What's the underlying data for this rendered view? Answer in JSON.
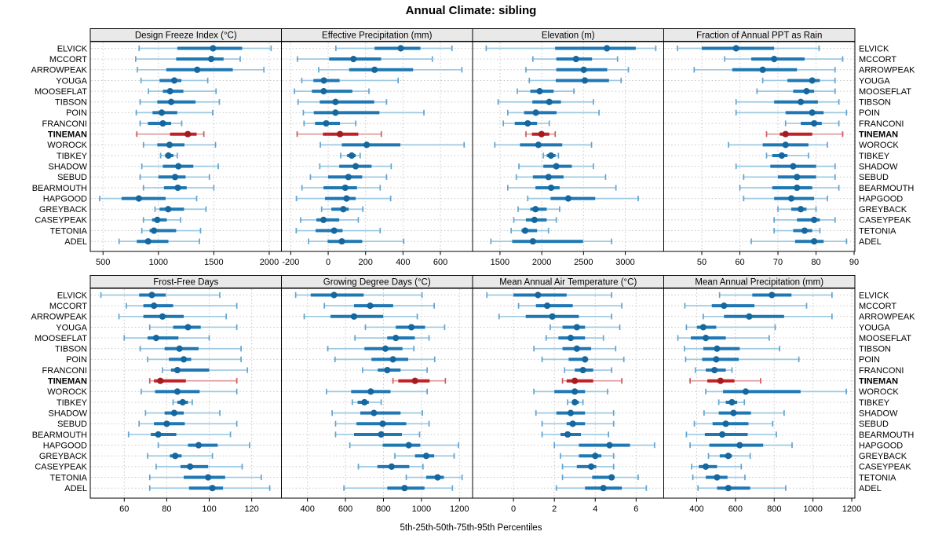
{
  "colors": {
    "series": "#1f78b4",
    "series_light": "#9dc9e2",
    "series_mid": "#63a4cd",
    "series_dark": "#15679e",
    "highlight": "#be2227",
    "highlight_light": "#dd989a",
    "highlight_mid": "#cb5a5e",
    "highlight_dark": "#a31c21",
    "grid": "#c8c8c8",
    "header_bg": "#e9e9e9",
    "border": "#000000"
  },
  "chart_data": {
    "type": "dot-interval",
    "title": "Annual Climate: sibling",
    "caption": "5th-25th-50th-75th-95th Percentiles",
    "percentiles": [
      "5th",
      "25th",
      "50th",
      "75th",
      "95th"
    ],
    "layout": {
      "rows": 2,
      "cols": 4,
      "grid": "dotted",
      "highlight_style": "red-bold"
    },
    "categories": [
      "ELVICK",
      "MCCORT",
      "ARROWPEAK",
      "YOUGA",
      "MOOSEFLAT",
      "TIBSON",
      "POIN",
      "FRANCONI",
      "TINEMAN",
      "WOROCK",
      "TIBKEY",
      "SHADOW",
      "SEBUD",
      "BEARMOUTH",
      "HAPGOOD",
      "GREYBACK",
      "CASEYPEAK",
      "TETONIA",
      "ADEL"
    ],
    "highlight_category": "TINEMAN",
    "panels": [
      {
        "title": "Design Freeze Index (°C)",
        "xlim": [
          385,
          2110
        ],
        "xticks": [
          500,
          1000,
          1500,
          2000
        ],
        "values": [
          [
            826,
            1171,
            1493,
            1755,
            2017
          ],
          [
            795,
            1160,
            1476,
            1588,
            1738
          ],
          [
            810,
            1071,
            1350,
            1671,
            1952
          ],
          [
            843,
            1010,
            1143,
            1207,
            1445
          ],
          [
            910,
            1040,
            1105,
            1225,
            1520
          ],
          [
            835,
            990,
            1115,
            1335,
            1550
          ],
          [
            800,
            947,
            1030,
            1170,
            1490
          ],
          [
            835,
            905,
            1040,
            1115,
            1210
          ],
          [
            805,
            1105,
            1265,
            1345,
            1410
          ],
          [
            865,
            990,
            1100,
            1235,
            1515
          ],
          [
            1020,
            1060,
            1090,
            1135,
            1170
          ],
          [
            850,
            1040,
            1180,
            1315,
            1540
          ],
          [
            835,
            1000,
            1150,
            1245,
            1460
          ],
          [
            865,
            1050,
            1175,
            1255,
            1500
          ],
          [
            470,
            667,
            823,
            1065,
            1345
          ],
          [
            969,
            1010,
            1088,
            1231,
            1429
          ],
          [
            865,
            943,
            990,
            1075,
            1200
          ],
          [
            850,
            920,
            960,
            1160,
            1380
          ],
          [
            645,
            805,
            907,
            1090,
            1370
          ]
        ]
      },
      {
        "title": "Effective Precipitation (mm)",
        "xlim": [
          -250,
          772
        ],
        "xticks": [
          -200,
          0,
          200,
          400,
          600
        ],
        "values": [
          [
            41,
            248,
            388,
            493,
            662
          ],
          [
            -164,
            5,
            135,
            283,
            557
          ],
          [
            -51,
            112,
            248,
            454,
            715
          ],
          [
            -141,
            -79,
            -23,
            61,
            374
          ],
          [
            -180,
            -87,
            -24,
            129,
            218
          ],
          [
            -161,
            -45,
            39,
            246,
            312
          ],
          [
            -133,
            -77,
            39,
            274,
            512
          ],
          [
            -129,
            -70,
            -11,
            63,
            147
          ],
          [
            -166,
            -28,
            63,
            161,
            284
          ],
          [
            -42,
            73,
            206,
            386,
            727
          ],
          [
            67,
            101,
            126,
            147,
            171
          ],
          [
            -45,
            59,
            147,
            232,
            337
          ],
          [
            -95,
            0,
            108,
            182,
            312
          ],
          [
            -140,
            -25,
            91,
            154,
            278
          ],
          [
            -170,
            -17,
            98,
            147,
            334
          ],
          [
            -35,
            17,
            81,
            110,
            185
          ],
          [
            -147,
            -63,
            -25,
            59,
            161
          ],
          [
            -171,
            -67,
            32,
            77,
            278
          ],
          [
            -105,
            -3,
            73,
            182,
            404
          ]
        ]
      },
      {
        "title": "Elevation (m)",
        "xlim": [
          1172,
          3460
        ],
        "xticks": [
          1500,
          2000,
          2500,
          3000
        ],
        "values": [
          [
            1335,
            2160,
            2780,
            3125,
            3365
          ],
          [
            1894,
            2174,
            2410,
            2602,
            2907
          ],
          [
            1811,
            2174,
            2503,
            2783,
            3037
          ],
          [
            1851,
            2168,
            2516,
            2805,
            2950
          ],
          [
            1708,
            1863,
            1975,
            2143,
            2385
          ],
          [
            1478,
            1888,
            2090,
            2230,
            2618
          ],
          [
            1593,
            1789,
            1929,
            2177,
            2686
          ],
          [
            1540,
            1677,
            1832,
            1944,
            2090
          ],
          [
            1811,
            1882,
            1997,
            2090,
            2161
          ],
          [
            1438,
            1739,
            1960,
            2245,
            2596
          ],
          [
            2020,
            2060,
            2110,
            2165,
            2200
          ],
          [
            1727,
            2019,
            2174,
            2360,
            2618
          ],
          [
            1696,
            1894,
            2081,
            2261,
            2764
          ],
          [
            1593,
            1925,
            2112,
            2214,
            2888
          ],
          [
            1832,
            2106,
            2317,
            2640,
            3155
          ],
          [
            1717,
            1863,
            1925,
            2059,
            2214
          ],
          [
            1665,
            1811,
            1913,
            2059,
            2174
          ],
          [
            1634,
            1758,
            1801,
            1944,
            2081
          ],
          [
            1391,
            1646,
            1894,
            2494,
            2835
          ]
        ]
      },
      {
        "title": "Fraction of Annual PPT as Rain",
        "xlim": [
          40,
          90.2
        ],
        "xticks": [
          50,
          60,
          70,
          80,
          90
        ],
        "values": [
          [
            43.6,
            50,
            59,
            69,
            80.8
          ],
          [
            56,
            63,
            69,
            77,
            87
          ],
          [
            48,
            58,
            66,
            75,
            85
          ],
          [
            66,
            72.5,
            79,
            81,
            85
          ],
          [
            64.5,
            74,
            77.5,
            79.5,
            85
          ],
          [
            59,
            69,
            76,
            80.5,
            86
          ],
          [
            59,
            72,
            79,
            82,
            88
          ],
          [
            72,
            76,
            79.5,
            81.5,
            86
          ],
          [
            67,
            70.5,
            72,
            79,
            87
          ],
          [
            57,
            66,
            72,
            78,
            83
          ],
          [
            67,
            68.5,
            71,
            72.5,
            78
          ],
          [
            59,
            68,
            74,
            80,
            85
          ],
          [
            61,
            70,
            75,
            80,
            85
          ],
          [
            60,
            68.5,
            75,
            79,
            86
          ],
          [
            61,
            69,
            73.5,
            79.5,
            83
          ],
          [
            70,
            73.5,
            76,
            77.5,
            80
          ],
          [
            69,
            75,
            79.5,
            81,
            85
          ],
          [
            69,
            74,
            77,
            79,
            81
          ],
          [
            63,
            74.5,
            79.5,
            82,
            88
          ]
        ]
      },
      {
        "title": "Frost-Free Days",
        "xlim": [
          44,
          134
        ],
        "xticks": [
          60,
          80,
          100,
          120
        ],
        "values": [
          [
            49,
            67,
            73,
            79.5,
            105
          ],
          [
            61,
            69,
            74,
            83,
            113
          ],
          [
            57.5,
            69,
            78,
            88,
            108
          ],
          [
            72,
            83,
            90,
            96,
            113
          ],
          [
            60,
            71,
            75,
            85.5,
            100
          ],
          [
            67.5,
            79,
            86,
            95,
            115
          ],
          [
            71,
            81,
            88,
            91.5,
            115
          ],
          [
            78,
            82,
            85,
            100,
            118
          ],
          [
            72,
            74,
            77,
            89,
            113
          ],
          [
            68,
            74.5,
            85,
            95.5,
            113
          ],
          [
            83,
            85,
            87.5,
            90,
            92
          ],
          [
            70,
            79,
            83.5,
            88,
            105
          ],
          [
            67,
            74,
            80,
            88.5,
            113
          ],
          [
            62,
            72.5,
            76,
            84.5,
            110
          ],
          [
            76,
            90,
            95,
            104,
            119
          ],
          [
            71,
            81.5,
            84,
            87,
            101.5
          ],
          [
            75,
            86.5,
            91,
            99.5,
            115.5
          ],
          [
            72,
            88,
            99.5,
            107.5,
            124.5
          ],
          [
            72,
            90.5,
            101.5,
            106.5,
            128.5
          ]
        ]
      },
      {
        "title": "Growing Degree Days (°C)",
        "xlim": [
          263,
          1269
        ],
        "xticks": [
          400,
          600,
          800,
          1000,
          1200
        ],
        "values": [
          [
            338,
            417,
            540,
            696,
            1003
          ],
          [
            489,
            645,
            730,
            851,
            1067
          ],
          [
            383,
            521,
            645,
            799,
            978
          ],
          [
            705,
            865,
            947,
            1019,
            1122
          ],
          [
            650,
            820,
            865,
            965,
            1040
          ],
          [
            507,
            700,
            810,
            900,
            960
          ],
          [
            545,
            737,
            850,
            930,
            1070
          ],
          [
            690,
            770,
            820,
            890,
            1030
          ],
          [
            850,
            878,
            966,
            1043,
            1126
          ],
          [
            500,
            630,
            733,
            837,
            1030
          ],
          [
            636,
            664,
            700,
            723,
            788
          ],
          [
            530,
            678,
            750,
            890,
            1005
          ],
          [
            548,
            658,
            796,
            920,
            1040
          ],
          [
            548,
            645,
            788,
            897,
            990
          ],
          [
            623,
            796,
            933,
            994,
            1195
          ],
          [
            860,
            966,
            1025,
            1067,
            1172
          ],
          [
            668,
            768,
            843,
            936,
            1008
          ],
          [
            920,
            1025,
            1085,
            1118,
            1214
          ],
          [
            592,
            820,
            911,
            1016,
            1163
          ]
        ]
      },
      {
        "title": "Mean Annual Air Temperature (°C)",
        "xlim": [
          -2,
          7.35
        ],
        "xticks": [
          0,
          2,
          4,
          6
        ],
        "values": [
          [
            -1.3,
            0.0,
            1.2,
            2.6,
            4.8
          ],
          [
            0.25,
            1.1,
            1.65,
            2.9,
            5.3
          ],
          [
            -0.7,
            0.6,
            1.9,
            3.2,
            4.8
          ],
          [
            1.8,
            2.4,
            3.1,
            3.5,
            5.2
          ],
          [
            1.6,
            2.2,
            2.8,
            3.5,
            4.4
          ],
          [
            1.0,
            2.4,
            3.1,
            3.8,
            5.0
          ],
          [
            1.4,
            2.7,
            3.5,
            3.6,
            5.4
          ],
          [
            2.5,
            3.0,
            3.4,
            3.9,
            4.8
          ],
          [
            2.4,
            2.6,
            3.0,
            3.9,
            5.3
          ],
          [
            1.0,
            2.0,
            3.0,
            3.5,
            4.6
          ],
          [
            2.65,
            2.9,
            3.0,
            3.2,
            3.4
          ],
          [
            1.1,
            2.1,
            2.8,
            3.5,
            4.9
          ],
          [
            1.4,
            2.6,
            2.9,
            3.5,
            4.9
          ],
          [
            1.4,
            2.3,
            2.65,
            3.3,
            4.65
          ],
          [
            2.0,
            3.2,
            4.7,
            5.7,
            6.9
          ],
          [
            2.3,
            3.2,
            4.0,
            4.3,
            4.9
          ],
          [
            2.4,
            3.1,
            3.8,
            4.05,
            4.9
          ],
          [
            2.4,
            3.85,
            4.8,
            4.9,
            6.1
          ],
          [
            2.1,
            3.5,
            4.4,
            5.3,
            6.5
          ]
        ]
      },
      {
        "title": "Mean Annual Precipitation (mm)",
        "xlim": [
          230,
          1216
        ],
        "xticks": [
          400,
          600,
          800,
          1000,
          1200
        ],
        "values": [
          [
            518,
            687,
            788,
            889,
            1098
          ],
          [
            339,
            478,
            541,
            698,
            967
          ],
          [
            434,
            541,
            671,
            851,
            1098
          ],
          [
            347,
            401,
            434,
            501,
            805
          ],
          [
            303,
            370,
            447,
            550,
            774
          ],
          [
            337,
            434,
            505,
            622,
            828
          ],
          [
            343,
            428,
            501,
            617,
            927
          ],
          [
            393,
            447,
            492,
            550,
            582
          ],
          [
            366,
            455,
            523,
            595,
            730
          ],
          [
            447,
            536,
            653,
            936,
            1172
          ],
          [
            514,
            550,
            582,
            609,
            646
          ],
          [
            438,
            514,
            590,
            680,
            851
          ],
          [
            388,
            482,
            550,
            667,
            792
          ],
          [
            347,
            442,
            532,
            663,
            811
          ],
          [
            366,
            465,
            622,
            743,
            892
          ],
          [
            461,
            519,
            563,
            582,
            676
          ],
          [
            374,
            411,
            447,
            505,
            630
          ],
          [
            380,
            447,
            505,
            559,
            649
          ],
          [
            407,
            505,
            563,
            676,
            859
          ]
        ]
      }
    ]
  }
}
